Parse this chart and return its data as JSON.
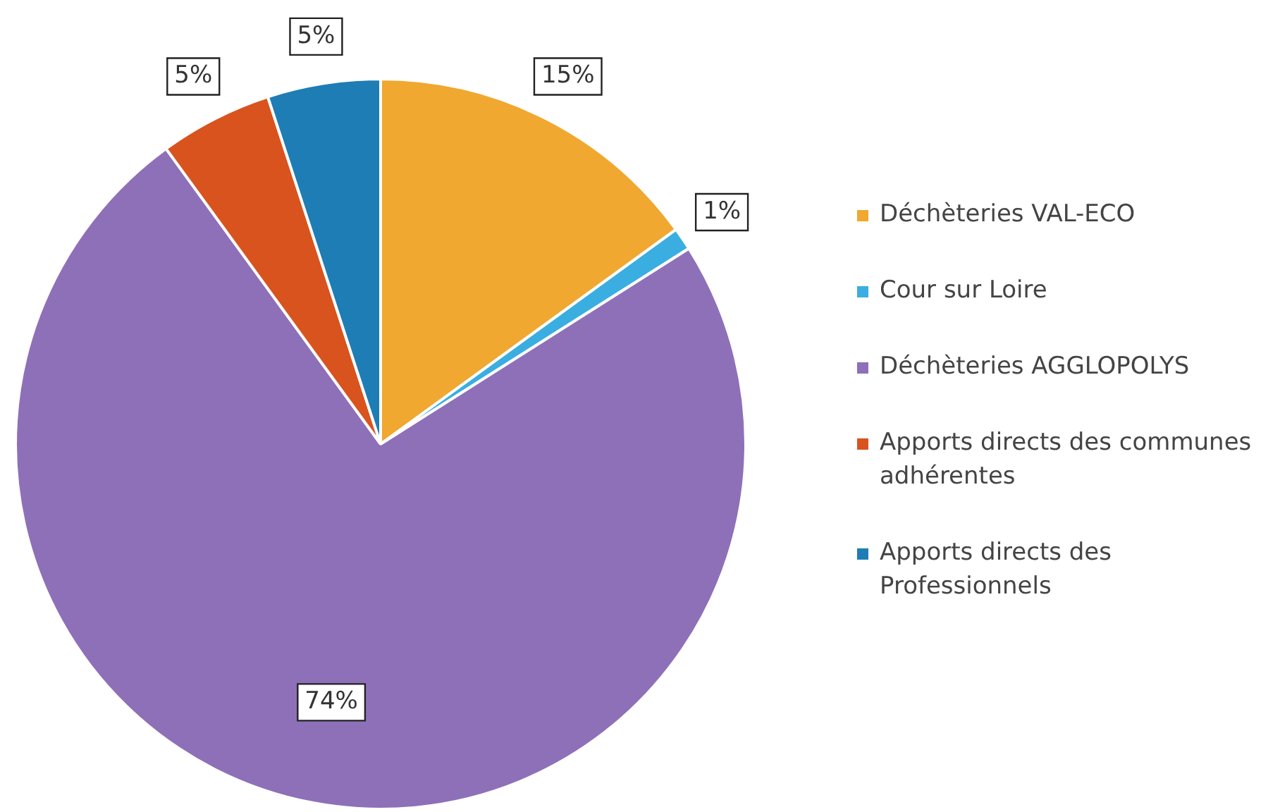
{
  "chart_data": {
    "type": "pie",
    "categories": [
      "Déchèteries VAL-ECO",
      "Cour sur Loire",
      "Déchèteries AGGLOPOLYS",
      "Apports directs des communes adhérentes",
      "Apports directs des Professionnels"
    ],
    "values": [
      15,
      1,
      74,
      5,
      5
    ],
    "colors": [
      "#f0a830",
      "#3aaee0",
      "#8e70b8",
      "#d9531e",
      "#1e7db5"
    ],
    "value_labels": [
      "15%",
      "1%",
      "74%",
      "5%",
      "5%"
    ],
    "legend": "right"
  }
}
